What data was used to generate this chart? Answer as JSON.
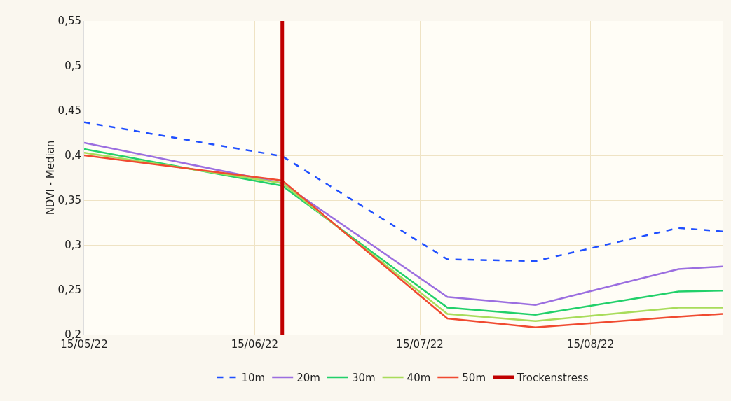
{
  "chart_data": {
    "type": "line",
    "ylabel": "NDVI - Median",
    "x": [
      "2022-05-15",
      "2022-06-20",
      "2022-07-20",
      "2022-08-05",
      "2022-08-31",
      "2022-09-08"
    ],
    "xlim": [
      "2022-05-15",
      "2022-09-08"
    ],
    "xticks": [
      {
        "value": "2022-05-15",
        "label": "15/05/22"
      },
      {
        "value": "2022-06-15",
        "label": "15/06/22"
      },
      {
        "value": "2022-07-15",
        "label": "15/07/22"
      },
      {
        "value": "2022-08-15",
        "label": "15/08/22"
      }
    ],
    "ylim": [
      0.2,
      0.55
    ],
    "yticks": [
      {
        "value": 0.2,
        "label": "0,2"
      },
      {
        "value": 0.25,
        "label": "0,25"
      },
      {
        "value": 0.3,
        "label": "0,3"
      },
      {
        "value": 0.35,
        "label": "0,35"
      },
      {
        "value": 0.4,
        "label": "0,4"
      },
      {
        "value": 0.45,
        "label": "0,45"
      },
      {
        "value": 0.5,
        "label": "0,5"
      },
      {
        "value": 0.55,
        "label": "0,55"
      }
    ],
    "grid": true,
    "legend": "bottom",
    "marker": "none",
    "series": [
      {
        "name": "10m",
        "color": "#1f4fff",
        "line_style": "dashed",
        "values": [
          0.437,
          0.399,
          0.284,
          0.282,
          0.319,
          0.315
        ]
      },
      {
        "name": "20m",
        "color": "#9b6ee0",
        "values": [
          0.414,
          0.369,
          0.242,
          0.233,
          0.273,
          0.276
        ]
      },
      {
        "name": "30m",
        "color": "#22d06a",
        "values": [
          0.407,
          0.366,
          0.23,
          0.222,
          0.248,
          0.249
        ]
      },
      {
        "name": "40m",
        "color": "#a8dc5a",
        "values": [
          0.403,
          0.369,
          0.223,
          0.215,
          0.23,
          0.23
        ]
      },
      {
        "name": "50m",
        "color": "#f04a30",
        "values": [
          0.4,
          0.372,
          0.218,
          0.208,
          0.22,
          0.223
        ]
      },
      {
        "name": "Trockenstress",
        "color": "#c00000",
        "x": [
          "2022-06-20",
          "2022-06-20"
        ],
        "values": [
          0.2,
          0.55
        ]
      }
    ]
  }
}
